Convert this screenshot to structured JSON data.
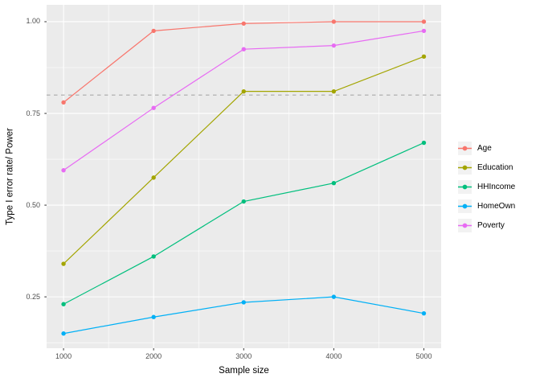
{
  "figure": {
    "background": "#FFFFFF",
    "panel_background": "#EBEBEB",
    "grid_color": "#FFFFFF",
    "tick_color": "#333333",
    "tick_label_color": "#4D4D4D",
    "axis_title_color": "#000000",
    "reference_line_color": "#A9A9A9",
    "legend_key_background": "#F2F2F2"
  },
  "chart_data": {
    "type": "line",
    "title": "",
    "xlabel": "Sample size",
    "ylabel": "Type I error rate/ Power",
    "x": [
      1000,
      2000,
      3000,
      4000,
      5000
    ],
    "x_tick_labels": [
      "1000",
      "2000",
      "3000",
      "4000",
      "5000"
    ],
    "y_tick_values": [
      0.25,
      0.5,
      0.75,
      1.0
    ],
    "y_tick_labels": [
      "0.25",
      "0.50",
      "0.75",
      "1.00"
    ],
    "x_minor_gridlines": [
      1500,
      2500,
      3500,
      4500
    ],
    "y_minor_gridlines": [
      0.125,
      0.375,
      0.625,
      0.875
    ],
    "xlim": [
      812,
      5192
    ],
    "ylim": [
      0.11,
      1.046
    ],
    "grid": true,
    "legend_position": "right",
    "reference_line": {
      "y": 0.8,
      "style": "dashed"
    },
    "series": [
      {
        "name": "Age",
        "color": "#F8766D",
        "values": [
          0.78,
          0.975,
          0.995,
          1.0,
          1.0
        ]
      },
      {
        "name": "Education",
        "color": "#A3A500",
        "values": [
          0.34,
          0.575,
          0.81,
          0.81,
          0.905
        ]
      },
      {
        "name": "HHIncome",
        "color": "#00BF7D",
        "values": [
          0.23,
          0.36,
          0.51,
          0.56,
          0.67
        ]
      },
      {
        "name": "HomeOwn",
        "color": "#00B0F6",
        "values": [
          0.15,
          0.195,
          0.235,
          0.25,
          0.205
        ]
      },
      {
        "name": "Poverty",
        "color": "#E76BF3",
        "values": [
          0.595,
          0.765,
          0.925,
          0.935,
          0.975
        ]
      }
    ]
  }
}
